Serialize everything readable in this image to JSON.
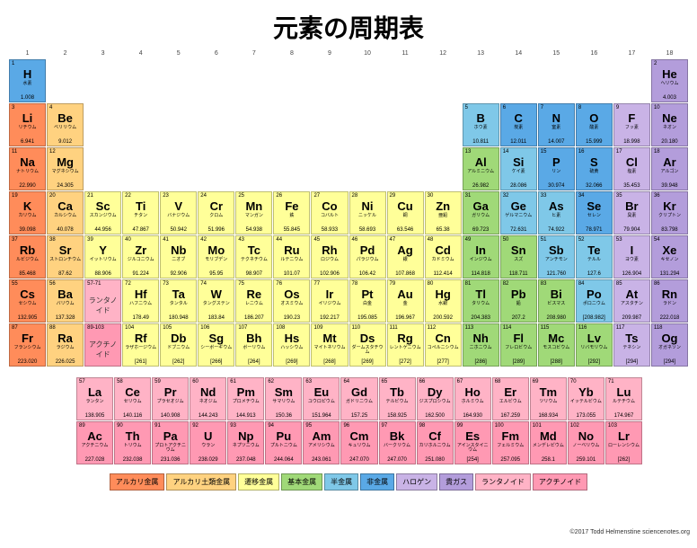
{
  "title": "元素の周期表",
  "credit": "©2017 Todd Helmenstine\nsciencenotes.org",
  "colors": {
    "alkali": "#ff8c5a",
    "alkaline": "#ffd280",
    "transition": "#ffff99",
    "basic": "#a0d978",
    "metalloid": "#7fc8e8",
    "nonmetal": "#5aa9e6",
    "halogen": "#c9b3e6",
    "noble": "#b39ddb",
    "lanthanide": "#ffb3c6",
    "actinide": "#ff99b3"
  },
  "legend": [
    {
      "label": "アルカリ金属",
      "c": "alkali"
    },
    {
      "label": "アルカリ土類金属",
      "c": "alkaline"
    },
    {
      "label": "遷移金属",
      "c": "transition"
    },
    {
      "label": "基本金属",
      "c": "basic"
    },
    {
      "label": "半金属",
      "c": "metalloid"
    },
    {
      "label": "非金属",
      "c": "nonmetal"
    },
    {
      "label": "ハロゲン",
      "c": "halogen"
    },
    {
      "label": "貴ガス",
      "c": "noble"
    },
    {
      "label": "ランタノイド",
      "c": "lanthanide"
    },
    {
      "label": "アクチノイド",
      "c": "actinide"
    }
  ],
  "groups": [
    1,
    2,
    3,
    4,
    5,
    6,
    7,
    8,
    9,
    10,
    11,
    12,
    13,
    14,
    15,
    16,
    17,
    18
  ],
  "rows": [
    [
      {
        "n": 1,
        "s": "H",
        "j": "水素",
        "m": "1.008",
        "c": "nonmetal"
      },
      null,
      null,
      null,
      null,
      null,
      null,
      null,
      null,
      null,
      null,
      null,
      null,
      null,
      null,
      null,
      null,
      {
        "n": 2,
        "s": "He",
        "j": "ヘリウム",
        "m": "4.003",
        "c": "noble"
      }
    ],
    [
      {
        "n": 3,
        "s": "Li",
        "j": "リチウム",
        "m": "6.941",
        "c": "alkali"
      },
      {
        "n": 4,
        "s": "Be",
        "j": "ベリリウム",
        "m": "9.012",
        "c": "alkaline"
      },
      null,
      null,
      null,
      null,
      null,
      null,
      null,
      null,
      null,
      null,
      {
        "n": 5,
        "s": "B",
        "j": "ホウ素",
        "m": "10.811",
        "c": "metalloid"
      },
      {
        "n": 6,
        "s": "C",
        "j": "炭素",
        "m": "12.011",
        "c": "nonmetal"
      },
      {
        "n": 7,
        "s": "N",
        "j": "窒素",
        "m": "14.007",
        "c": "nonmetal"
      },
      {
        "n": 8,
        "s": "O",
        "j": "酸素",
        "m": "15.999",
        "c": "nonmetal"
      },
      {
        "n": 9,
        "s": "F",
        "j": "フッ素",
        "m": "18.998",
        "c": "halogen"
      },
      {
        "n": 10,
        "s": "Ne",
        "j": "ネオン",
        "m": "20.180",
        "c": "noble"
      }
    ],
    [
      {
        "n": 11,
        "s": "Na",
        "j": "ナトリウム",
        "m": "22.990",
        "c": "alkali"
      },
      {
        "n": 12,
        "s": "Mg",
        "j": "マグネシウム",
        "m": "24.305",
        "c": "alkaline"
      },
      null,
      null,
      null,
      null,
      null,
      null,
      null,
      null,
      null,
      null,
      {
        "n": 13,
        "s": "Al",
        "j": "アルミニウム",
        "m": "26.982",
        "c": "basic"
      },
      {
        "n": 14,
        "s": "Si",
        "j": "ケイ素",
        "m": "28.086",
        "c": "metalloid"
      },
      {
        "n": 15,
        "s": "P",
        "j": "リン",
        "m": "30.974",
        "c": "nonmetal"
      },
      {
        "n": 16,
        "s": "S",
        "j": "硫黄",
        "m": "32.066",
        "c": "nonmetal"
      },
      {
        "n": 17,
        "s": "Cl",
        "j": "塩素",
        "m": "35.453",
        "c": "halogen"
      },
      {
        "n": 18,
        "s": "Ar",
        "j": "アルゴン",
        "m": "39.948",
        "c": "noble"
      }
    ],
    [
      {
        "n": 19,
        "s": "K",
        "j": "カリウム",
        "m": "39.098",
        "c": "alkali"
      },
      {
        "n": 20,
        "s": "Ca",
        "j": "カルシウム",
        "m": "40.078",
        "c": "alkaline"
      },
      {
        "n": 21,
        "s": "Sc",
        "j": "スカンジウム",
        "m": "44.956",
        "c": "transition"
      },
      {
        "n": 22,
        "s": "Ti",
        "j": "チタン",
        "m": "47.867",
        "c": "transition"
      },
      {
        "n": 23,
        "s": "V",
        "j": "バナジウム",
        "m": "50.942",
        "c": "transition"
      },
      {
        "n": 24,
        "s": "Cr",
        "j": "クロム",
        "m": "51.996",
        "c": "transition"
      },
      {
        "n": 25,
        "s": "Mn",
        "j": "マンガン",
        "m": "54.938",
        "c": "transition"
      },
      {
        "n": 26,
        "s": "Fe",
        "j": "鉄",
        "m": "55.845",
        "c": "transition"
      },
      {
        "n": 27,
        "s": "Co",
        "j": "コバルト",
        "m": "58.933",
        "c": "transition"
      },
      {
        "n": 28,
        "s": "Ni",
        "j": "ニッケル",
        "m": "58.693",
        "c": "transition"
      },
      {
        "n": 29,
        "s": "Cu",
        "j": "銅",
        "m": "63.546",
        "c": "transition"
      },
      {
        "n": 30,
        "s": "Zn",
        "j": "亜鉛",
        "m": "65.38",
        "c": "transition"
      },
      {
        "n": 31,
        "s": "Ga",
        "j": "ガリウム",
        "m": "69.723",
        "c": "basic"
      },
      {
        "n": 32,
        "s": "Ge",
        "j": "ゲルマニウム",
        "m": "72.631",
        "c": "metalloid"
      },
      {
        "n": 33,
        "s": "As",
        "j": "ヒ素",
        "m": "74.922",
        "c": "metalloid"
      },
      {
        "n": 34,
        "s": "Se",
        "j": "セレン",
        "m": "78.971",
        "c": "nonmetal"
      },
      {
        "n": 35,
        "s": "Br",
        "j": "臭素",
        "m": "79.904",
        "c": "halogen"
      },
      {
        "n": 36,
        "s": "Kr",
        "j": "クリプトン",
        "m": "83.798",
        "c": "noble"
      }
    ],
    [
      {
        "n": 37,
        "s": "Rb",
        "j": "ルビジウム",
        "m": "85.468",
        "c": "alkali"
      },
      {
        "n": 38,
        "s": "Sr",
        "j": "ストロンチウム",
        "m": "87.62",
        "c": "alkaline"
      },
      {
        "n": 39,
        "s": "Y",
        "j": "イットリウム",
        "m": "88.906",
        "c": "transition"
      },
      {
        "n": 40,
        "s": "Zr",
        "j": "ジルコニウム",
        "m": "91.224",
        "c": "transition"
      },
      {
        "n": 41,
        "s": "Nb",
        "j": "ニオブ",
        "m": "92.906",
        "c": "transition"
      },
      {
        "n": 42,
        "s": "Mo",
        "j": "モリブデン",
        "m": "95.95",
        "c": "transition"
      },
      {
        "n": 43,
        "s": "Tc",
        "j": "テクネチウム",
        "m": "98.907",
        "c": "transition"
      },
      {
        "n": 44,
        "s": "Ru",
        "j": "ルテニウム",
        "m": "101.07",
        "c": "transition"
      },
      {
        "n": 45,
        "s": "Rh",
        "j": "ロジウム",
        "m": "102.906",
        "c": "transition"
      },
      {
        "n": 46,
        "s": "Pd",
        "j": "パラジウム",
        "m": "106.42",
        "c": "transition"
      },
      {
        "n": 47,
        "s": "Ag",
        "j": "銀",
        "m": "107.868",
        "c": "transition"
      },
      {
        "n": 48,
        "s": "Cd",
        "j": "カドミウム",
        "m": "112.414",
        "c": "transition"
      },
      {
        "n": 49,
        "s": "In",
        "j": "インジウム",
        "m": "114.818",
        "c": "basic"
      },
      {
        "n": 50,
        "s": "Sn",
        "j": "スズ",
        "m": "118.711",
        "c": "basic"
      },
      {
        "n": 51,
        "s": "Sb",
        "j": "アンチモン",
        "m": "121.760",
        "c": "metalloid"
      },
      {
        "n": 52,
        "s": "Te",
        "j": "テルル",
        "m": "127.6",
        "c": "metalloid"
      },
      {
        "n": 53,
        "s": "I",
        "j": "ヨウ素",
        "m": "126.904",
        "c": "halogen"
      },
      {
        "n": 54,
        "s": "Xe",
        "j": "キセノン",
        "m": "131.294",
        "c": "noble"
      }
    ],
    [
      {
        "n": 55,
        "s": "Cs",
        "j": "セシウム",
        "m": "132.905",
        "c": "alkali"
      },
      {
        "n": 56,
        "s": "Ba",
        "j": "バリウム",
        "m": "137.328",
        "c": "alkaline"
      },
      {
        "range": "57-71",
        "j": "ランタノイド",
        "c": "lanthanide"
      },
      {
        "n": 72,
        "s": "Hf",
        "j": "ハフニウム",
        "m": "178.49",
        "c": "transition"
      },
      {
        "n": 73,
        "s": "Ta",
        "j": "タンタル",
        "m": "180.948",
        "c": "transition"
      },
      {
        "n": 74,
        "s": "W",
        "j": "タングステン",
        "m": "183.84",
        "c": "transition"
      },
      {
        "n": 75,
        "s": "Re",
        "j": "レニウム",
        "m": "186.207",
        "c": "transition"
      },
      {
        "n": 76,
        "s": "Os",
        "j": "オスミウム",
        "m": "190.23",
        "c": "transition"
      },
      {
        "n": 77,
        "s": "Ir",
        "j": "イリジウム",
        "m": "192.217",
        "c": "transition"
      },
      {
        "n": 78,
        "s": "Pt",
        "j": "白金",
        "m": "195.085",
        "c": "transition"
      },
      {
        "n": 79,
        "s": "Au",
        "j": "金",
        "m": "196.967",
        "c": "transition"
      },
      {
        "n": 80,
        "s": "Hg",
        "j": "水銀",
        "m": "200.592",
        "c": "transition"
      },
      {
        "n": 81,
        "s": "Tl",
        "j": "タリウム",
        "m": "204.383",
        "c": "basic"
      },
      {
        "n": 82,
        "s": "Pb",
        "j": "鉛",
        "m": "207.2",
        "c": "basic"
      },
      {
        "n": 83,
        "s": "Bi",
        "j": "ビスマス",
        "m": "208.980",
        "c": "basic"
      },
      {
        "n": 84,
        "s": "Po",
        "j": "ポロニウム",
        "m": "[208.982]",
        "c": "metalloid"
      },
      {
        "n": 85,
        "s": "At",
        "j": "アスタチン",
        "m": "209.987",
        "c": "halogen"
      },
      {
        "n": 86,
        "s": "Rn",
        "j": "ラドン",
        "m": "222.018",
        "c": "noble"
      }
    ],
    [
      {
        "n": 87,
        "s": "Fr",
        "j": "フランシウム",
        "m": "223.020",
        "c": "alkali"
      },
      {
        "n": 88,
        "s": "Ra",
        "j": "ラジウム",
        "m": "226.025",
        "c": "alkaline"
      },
      {
        "range": "89-103",
        "j": "アクチノイド",
        "c": "actinide"
      },
      {
        "n": 104,
        "s": "Rf",
        "j": "ラザホージウム",
        "m": "[261]",
        "c": "transition"
      },
      {
        "n": 105,
        "s": "Db",
        "j": "ドブニウム",
        "m": "[262]",
        "c": "transition"
      },
      {
        "n": 106,
        "s": "Sg",
        "j": "シーボーギウム",
        "m": "[266]",
        "c": "transition"
      },
      {
        "n": 107,
        "s": "Bh",
        "j": "ボーリウム",
        "m": "[264]",
        "c": "transition"
      },
      {
        "n": 108,
        "s": "Hs",
        "j": "ハッシウム",
        "m": "[269]",
        "c": "transition"
      },
      {
        "n": 109,
        "s": "Mt",
        "j": "マイトネリウム",
        "m": "[268]",
        "c": "transition"
      },
      {
        "n": 110,
        "s": "Ds",
        "j": "ダームスタチウム",
        "m": "[269]",
        "c": "transition"
      },
      {
        "n": 111,
        "s": "Rg",
        "j": "レントゲニウム",
        "m": "[272]",
        "c": "transition"
      },
      {
        "n": 112,
        "s": "Cn",
        "j": "コペルニシウム",
        "m": "[277]",
        "c": "transition"
      },
      {
        "n": 113,
        "s": "Nh",
        "j": "ニホニウム",
        "m": "[286]",
        "c": "basic"
      },
      {
        "n": 114,
        "s": "Fl",
        "j": "フレロビウム",
        "m": "[289]",
        "c": "basic"
      },
      {
        "n": 115,
        "s": "Mc",
        "j": "モスコビウム",
        "m": "[288]",
        "c": "basic"
      },
      {
        "n": 116,
        "s": "Lv",
        "j": "リバモリウム",
        "m": "[292]",
        "c": "basic"
      },
      {
        "n": 117,
        "s": "Ts",
        "j": "テネシン",
        "m": "[294]",
        "c": "halogen"
      },
      {
        "n": 118,
        "s": "Og",
        "j": "オガネソン",
        "m": "[294]",
        "c": "noble"
      }
    ]
  ],
  "fblock": [
    [
      {
        "n": 57,
        "s": "La",
        "j": "ランタン",
        "m": "138.905",
        "c": "lanthanide"
      },
      {
        "n": 58,
        "s": "Ce",
        "j": "セリウム",
        "m": "140.116",
        "c": "lanthanide"
      },
      {
        "n": 59,
        "s": "Pr",
        "j": "プラセオジム",
        "m": "140.908",
        "c": "lanthanide"
      },
      {
        "n": 60,
        "s": "Nd",
        "j": "ネオジム",
        "m": "144.243",
        "c": "lanthanide"
      },
      {
        "n": 61,
        "s": "Pm",
        "j": "プロメチウム",
        "m": "144.913",
        "c": "lanthanide"
      },
      {
        "n": 62,
        "s": "Sm",
        "j": "サマリウム",
        "m": "150.36",
        "c": "lanthanide"
      },
      {
        "n": 63,
        "s": "Eu",
        "j": "ユウロピウム",
        "m": "151.964",
        "c": "lanthanide"
      },
      {
        "n": 64,
        "s": "Gd",
        "j": "ガドリニウム",
        "m": "157.25",
        "c": "lanthanide"
      },
      {
        "n": 65,
        "s": "Tb",
        "j": "テルビウム",
        "m": "158.925",
        "c": "lanthanide"
      },
      {
        "n": 66,
        "s": "Dy",
        "j": "ジスプロシウム",
        "m": "162.500",
        "c": "lanthanide"
      },
      {
        "n": 67,
        "s": "Ho",
        "j": "ホルミウム",
        "m": "164.930",
        "c": "lanthanide"
      },
      {
        "n": 68,
        "s": "Er",
        "j": "エルビウム",
        "m": "167.259",
        "c": "lanthanide"
      },
      {
        "n": 69,
        "s": "Tm",
        "j": "ツリウム",
        "m": "168.934",
        "c": "lanthanide"
      },
      {
        "n": 70,
        "s": "Yb",
        "j": "イッテルビウム",
        "m": "173.055",
        "c": "lanthanide"
      },
      {
        "n": 71,
        "s": "Lu",
        "j": "ルテチウム",
        "m": "174.967",
        "c": "lanthanide"
      }
    ],
    [
      {
        "n": 89,
        "s": "Ac",
        "j": "アクチニウム",
        "m": "227.028",
        "c": "actinide"
      },
      {
        "n": 90,
        "s": "Th",
        "j": "トリウム",
        "m": "232.038",
        "c": "actinide"
      },
      {
        "n": 91,
        "s": "Pa",
        "j": "プロトアクチニウム",
        "m": "231.036",
        "c": "actinide"
      },
      {
        "n": 92,
        "s": "U",
        "j": "ウラン",
        "m": "238.029",
        "c": "actinide"
      },
      {
        "n": 93,
        "s": "Np",
        "j": "ネプツニウム",
        "m": "237.048",
        "c": "actinide"
      },
      {
        "n": 94,
        "s": "Pu",
        "j": "プルトニウム",
        "m": "244.064",
        "c": "actinide"
      },
      {
        "n": 95,
        "s": "Am",
        "j": "アメリシウム",
        "m": "243.061",
        "c": "actinide"
      },
      {
        "n": 96,
        "s": "Cm",
        "j": "キュリウム",
        "m": "247.070",
        "c": "actinide"
      },
      {
        "n": 97,
        "s": "Bk",
        "j": "バークリウム",
        "m": "247.070",
        "c": "actinide"
      },
      {
        "n": 98,
        "s": "Cf",
        "j": "カリホルニウム",
        "m": "251.080",
        "c": "actinide"
      },
      {
        "n": 99,
        "s": "Es",
        "j": "アインスタイニウム",
        "m": "[254]",
        "c": "actinide"
      },
      {
        "n": 100,
        "s": "Fm",
        "j": "フェルミウム",
        "m": "257.095",
        "c": "actinide"
      },
      {
        "n": 101,
        "s": "Md",
        "j": "メンデレビウム",
        "m": "258.1",
        "c": "actinide"
      },
      {
        "n": 102,
        "s": "No",
        "j": "ノーベリウム",
        "m": "259.101",
        "c": "actinide"
      },
      {
        "n": 103,
        "s": "Lr",
        "j": "ローレンシウム",
        "m": "[262]",
        "c": "actinide"
      }
    ]
  ]
}
